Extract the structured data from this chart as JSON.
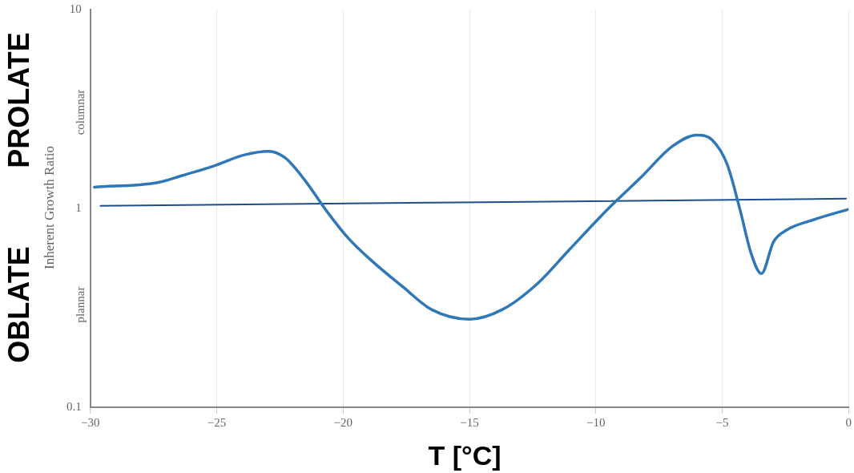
{
  "chart_data": {
    "type": "line",
    "xlabel": "T [°C]",
    "ylabel": "Inherent Growth Ratio",
    "annotations": [
      "PROLATE",
      "OBLATE",
      "columnar",
      "plannar"
    ],
    "series": [
      {
        "color": "#2f78b8",
        "x": [
          -29.84,
          -27.34,
          -26.4,
          -25.15,
          -23.9,
          -22.95,
          -22.3,
          -21.5,
          -20.7,
          -19.8,
          -18.9,
          -17.6,
          -16.5,
          -15.0,
          -13.7,
          -12.3,
          -11.05,
          -9.5,
          -8.2,
          -6.98,
          -6.0,
          -5.4,
          -4.8,
          -4.3,
          -3.85,
          -3.45,
          -2.97,
          -2.44,
          -1.35,
          0
        ],
        "values": [
          1.28,
          1.35,
          1.46,
          1.63,
          1.86,
          1.94,
          1.8,
          1.38,
          0.99,
          0.71,
          0.55,
          0.4,
          0.31,
          0.277,
          0.31,
          0.42,
          0.62,
          1.0,
          1.44,
          2.05,
          2.34,
          2.21,
          1.66,
          0.99,
          0.59,
          0.47,
          0.68,
          0.78,
          0.88,
          0.99
        ]
      },
      {
        "type": "line",
        "color": "#1f4e8c",
        "x": [
          -29.6,
          -0.1
        ],
        "values": [
          1.03,
          1.12
        ]
      }
    ],
    "xlim": [
      -30,
      0
    ],
    "xticks": [
      -30,
      -25,
      -20,
      -15,
      -10,
      -5,
      0
    ],
    "ylim": [
      0.1,
      10
    ],
    "yticks": [
      0.1,
      1,
      10
    ],
    "log": true,
    "grid": "x",
    "legend": false,
    "marker": "none",
    "line_style": "solid"
  }
}
